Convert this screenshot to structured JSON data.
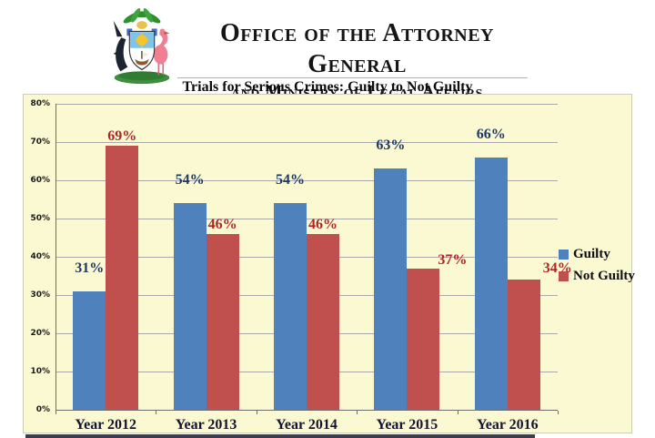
{
  "header": {
    "org_line1": "Office of the Attorney General",
    "org_line2": "and Ministry of Legal Affairs",
    "logo": "bahamas-coat-of-arms"
  },
  "chart_data": {
    "type": "bar",
    "title": "Trials for Serious Crimes: Guilty to Not Guilty",
    "categories": [
      "Year 2012",
      "Year 2013",
      "Year 2014",
      "Year 2015",
      "Year 2016"
    ],
    "series": [
      {
        "name": "Guilty",
        "color": "#4F81BD",
        "label_color": "#1F3864",
        "values": [
          31,
          54,
          54,
          63,
          66
        ]
      },
      {
        "name": "Not Guilty",
        "color": "#C0504D",
        "label_color": "#B02423",
        "values": [
          69,
          46,
          46,
          37,
          34
        ]
      }
    ],
    "value_suffix": "%",
    "ylim": [
      0,
      80
    ],
    "ytick_step": 10,
    "ytick_labels": [
      "0%",
      "10%",
      "20%",
      "30%",
      "40%",
      "50%",
      "60%",
      "70%",
      "80%"
    ],
    "grid": true,
    "legend_position": "right",
    "plot_bg": "#FAF9D2"
  },
  "colors": {
    "grid": "#A8A8A8",
    "axis": "#6E6E6E",
    "footer_strip": "#3C3C50"
  }
}
